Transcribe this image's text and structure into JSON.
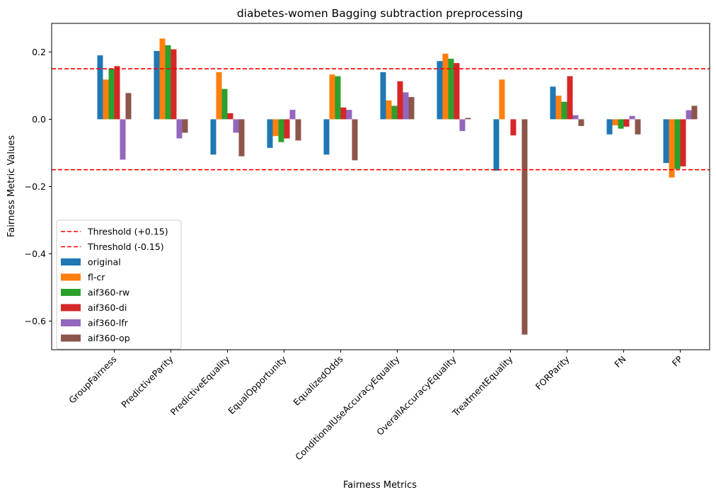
{
  "chart_data": {
    "type": "bar",
    "title": "diabetes-women Bagging subtraction preprocessing",
    "xlabel": "Fairness Metrics",
    "ylabel": "Fairness Metric Values",
    "ylim": [
      -0.685,
      0.285
    ],
    "yticks": [
      0.2,
      0.0,
      -0.2,
      -0.4,
      -0.6
    ],
    "ytick_labels": [
      "0.2",
      "0.0",
      "−0.2",
      "−0.4",
      "−0.6"
    ],
    "grid": false,
    "legend_position": "lower-left",
    "categories": [
      "GroupFairness",
      "PredictiveParity",
      "PredictiveEquality",
      "EqualOpportunity",
      "EqualizedOdds",
      "ConditionalUseAccuracyEquality",
      "OverallAccuracyEquality",
      "TreatmentEquality",
      "FORParity",
      "FN",
      "FP"
    ],
    "thresholds": [
      {
        "name": "Threshold (+0.15)",
        "value": 0.15,
        "color": "#ff0000"
      },
      {
        "name": "Threshold (-0.15)",
        "value": -0.15,
        "color": "#ff0000"
      }
    ],
    "series": [
      {
        "name": "original",
        "color": "#1f77b4",
        "values": [
          0.19,
          0.203,
          -0.105,
          -0.085,
          -0.105,
          0.14,
          0.173,
          -0.153,
          0.097,
          -0.045,
          -0.13
        ]
      },
      {
        "name": "fl-cr",
        "color": "#ff7f0e",
        "values": [
          0.118,
          0.24,
          0.14,
          -0.05,
          0.133,
          0.056,
          0.195,
          0.118,
          0.07,
          -0.018,
          -0.173
        ]
      },
      {
        "name": "aif360-rw",
        "color": "#2ca02c",
        "values": [
          0.15,
          0.22,
          0.09,
          -0.068,
          0.128,
          0.04,
          0.18,
          0.0,
          0.052,
          -0.028,
          -0.148
        ]
      },
      {
        "name": "aif360-di",
        "color": "#d62728",
        "values": [
          0.158,
          0.208,
          0.018,
          -0.057,
          0.035,
          0.113,
          0.167,
          -0.048,
          0.128,
          -0.022,
          -0.14
        ]
      },
      {
        "name": "aif360-lfr",
        "color": "#9467bd",
        "values": [
          -0.12,
          -0.057,
          -0.04,
          0.028,
          0.028,
          0.08,
          -0.035,
          0.0,
          0.012,
          0.01,
          0.027
        ]
      },
      {
        "name": "aif360-op",
        "color": "#8c564b",
        "values": [
          0.078,
          -0.04,
          -0.11,
          -0.063,
          -0.122,
          0.066,
          0.004,
          -0.64,
          -0.02,
          -0.045,
          0.04
        ]
      }
    ]
  }
}
